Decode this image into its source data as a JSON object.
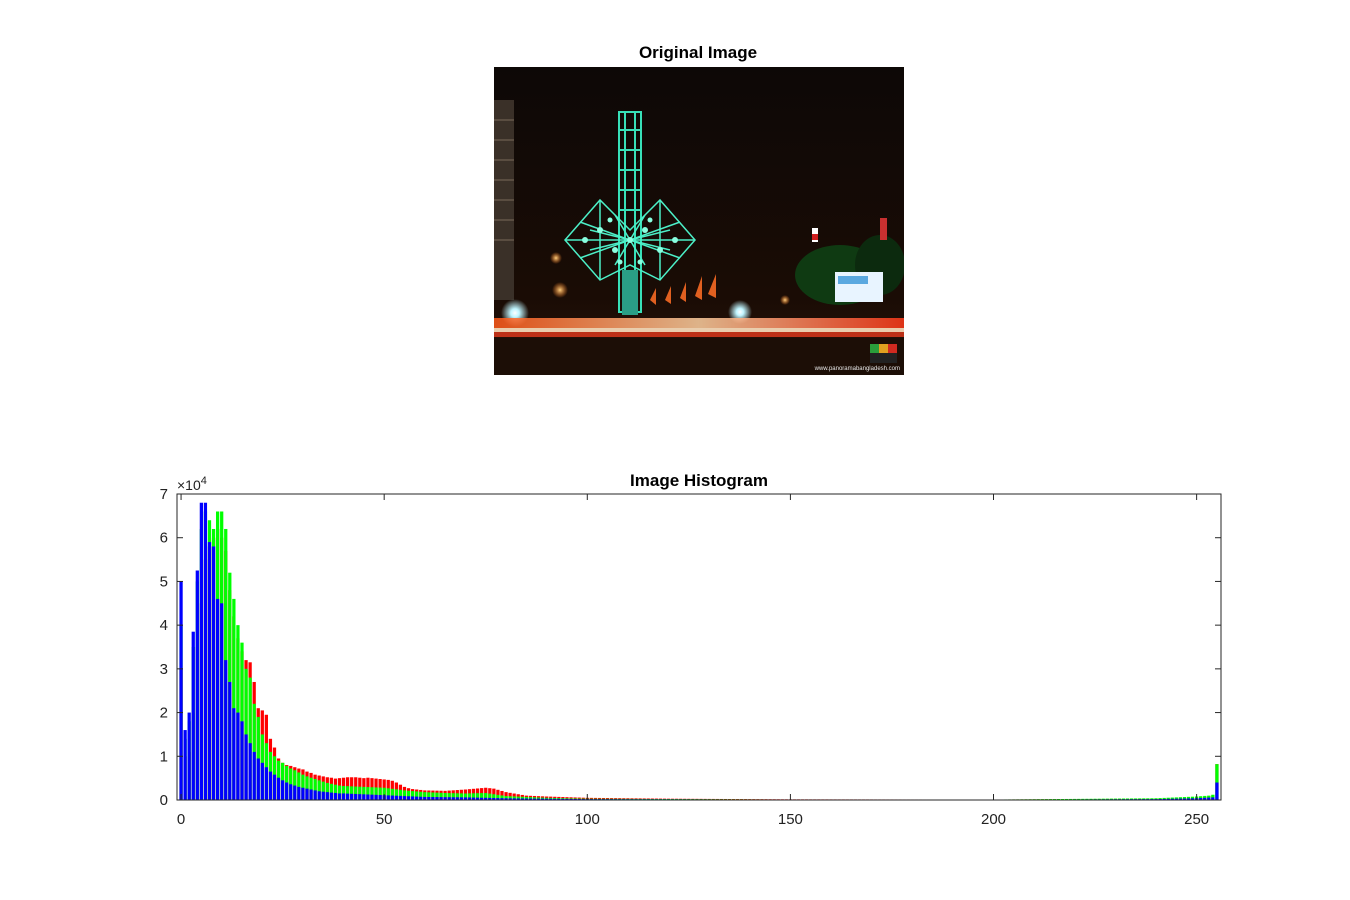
{
  "image_panel": {
    "title": "Original Image",
    "photo": {
      "watermark_url": "www.panoramabangladesh.com",
      "background_color": "#0a0604",
      "structure_color": "#38e0b8",
      "light_colors": [
        "#ff3a1a",
        "#ffb03a",
        "#ffffff"
      ]
    }
  },
  "chart_data": {
    "type": "bar",
    "title": "Image Histogram",
    "xlabel": "",
    "ylabel": "",
    "xlim": [
      -1,
      256
    ],
    "ylim": [
      0,
      70000
    ],
    "x_ticks": [
      0,
      50,
      100,
      150,
      200,
      250
    ],
    "y_ticks": [
      0,
      1,
      2,
      3,
      4,
      5,
      6,
      7
    ],
    "y_exponent_label": "×10",
    "y_exponent_power": "4",
    "y_scale": 10000,
    "grid": false,
    "bar_overlay": "red drawn first, green over red, blue over green",
    "series_colors": {
      "red": "#ff0000",
      "green": "#00ff00",
      "blue": "#0000ff"
    },
    "series": [
      {
        "channel": "red",
        "color": "#ff0000",
        "points": [
          [
            0,
            30000
          ],
          [
            1,
            10000
          ],
          [
            2,
            11000
          ],
          [
            3,
            20000
          ],
          [
            4,
            35000
          ],
          [
            5,
            45000
          ],
          [
            6,
            55000
          ],
          [
            7,
            58000
          ],
          [
            8,
            60000
          ],
          [
            9,
            62000
          ],
          [
            10,
            60000
          ],
          [
            11,
            57000
          ],
          [
            12,
            48000
          ],
          [
            13,
            42000
          ],
          [
            14,
            37000
          ],
          [
            15,
            34000
          ],
          [
            16,
            32000
          ],
          [
            17,
            31500
          ],
          [
            18,
            27000
          ],
          [
            19,
            21000
          ],
          [
            20,
            20500
          ],
          [
            21,
            19500
          ],
          [
            22,
            14000
          ],
          [
            23,
            12000
          ],
          [
            24,
            9500
          ],
          [
            25,
            8500
          ],
          [
            26,
            8000
          ],
          [
            27,
            7800
          ],
          [
            28,
            7500
          ],
          [
            29,
            7200
          ],
          [
            30,
            7000
          ],
          [
            31,
            6500
          ],
          [
            32,
            6200
          ],
          [
            33,
            5800
          ],
          [
            34,
            5600
          ],
          [
            35,
            5400
          ],
          [
            36,
            5200
          ],
          [
            37,
            5100
          ],
          [
            38,
            4900
          ],
          [
            39,
            5000
          ],
          [
            40,
            5100
          ],
          [
            41,
            5200
          ],
          [
            42,
            5200
          ],
          [
            43,
            5200
          ],
          [
            44,
            5100
          ],
          [
            45,
            5000
          ],
          [
            46,
            5100
          ],
          [
            47,
            5000
          ],
          [
            48,
            4900
          ],
          [
            49,
            4800
          ],
          [
            50,
            4700
          ],
          [
            51,
            4600
          ],
          [
            52,
            4400
          ],
          [
            53,
            4000
          ],
          [
            54,
            3500
          ],
          [
            55,
            3000
          ],
          [
            56,
            2700
          ],
          [
            57,
            2500
          ],
          [
            58,
            2400
          ],
          [
            59,
            2300
          ],
          [
            60,
            2200
          ],
          [
            65,
            2100
          ],
          [
            70,
            2400
          ],
          [
            75,
            2800
          ],
          [
            77,
            2600
          ],
          [
            80,
            1800
          ],
          [
            85,
            1000
          ],
          [
            90,
            800
          ],
          [
            100,
            500
          ],
          [
            120,
            300
          ],
          [
            150,
            150
          ],
          [
            200,
            100
          ],
          [
            240,
            300
          ],
          [
            250,
            500
          ],
          [
            253,
            800
          ],
          [
            254,
            1000
          ],
          [
            255,
            8200
          ]
        ]
      },
      {
        "channel": "green",
        "color": "#00ff00",
        "points": [
          [
            0,
            40000
          ],
          [
            1,
            14000
          ],
          [
            2,
            18000
          ],
          [
            3,
            35000
          ],
          [
            4,
            50000
          ],
          [
            5,
            62000
          ],
          [
            6,
            66000
          ],
          [
            7,
            64000
          ],
          [
            8,
            62000
          ],
          [
            9,
            66000
          ],
          [
            10,
            66000
          ],
          [
            11,
            62000
          ],
          [
            12,
            52000
          ],
          [
            13,
            46000
          ],
          [
            14,
            40000
          ],
          [
            15,
            36000
          ],
          [
            16,
            30000
          ],
          [
            17,
            28000
          ],
          [
            18,
            22000
          ],
          [
            19,
            19000
          ],
          [
            20,
            15000
          ],
          [
            21,
            13000
          ],
          [
            22,
            11000
          ],
          [
            23,
            10000
          ],
          [
            24,
            9000
          ],
          [
            25,
            8500
          ],
          [
            26,
            7800
          ],
          [
            27,
            7200
          ],
          [
            28,
            6800
          ],
          [
            29,
            6300
          ],
          [
            30,
            5800
          ],
          [
            31,
            5400
          ],
          [
            32,
            5100
          ],
          [
            33,
            4800
          ],
          [
            34,
            4500
          ],
          [
            35,
            4200
          ],
          [
            36,
            3900
          ],
          [
            37,
            3700
          ],
          [
            38,
            3500
          ],
          [
            39,
            3300
          ],
          [
            40,
            3200
          ],
          [
            45,
            3000
          ],
          [
            50,
            2800
          ],
          [
            55,
            2200
          ],
          [
            60,
            1800
          ],
          [
            65,
            1600
          ],
          [
            70,
            1500
          ],
          [
            75,
            1600
          ],
          [
            80,
            900
          ],
          [
            90,
            500
          ],
          [
            100,
            300
          ],
          [
            150,
            100
          ],
          [
            200,
            100
          ],
          [
            240,
            400
          ],
          [
            250,
            800
          ],
          [
            253,
            1000
          ],
          [
            254,
            1200
          ],
          [
            255,
            8200
          ]
        ]
      },
      {
        "channel": "blue",
        "color": "#0000ff",
        "points": [
          [
            0,
            50000
          ],
          [
            1,
            16000
          ],
          [
            2,
            20000
          ],
          [
            3,
            38500
          ],
          [
            4,
            52500
          ],
          [
            5,
            68000
          ],
          [
            6,
            68000
          ],
          [
            7,
            59000
          ],
          [
            8,
            58000
          ],
          [
            9,
            46000
          ],
          [
            10,
            45000
          ],
          [
            11,
            32000
          ],
          [
            12,
            27000
          ],
          [
            13,
            21000
          ],
          [
            14,
            20000
          ],
          [
            15,
            18000
          ],
          [
            16,
            15000
          ],
          [
            17,
            13000
          ],
          [
            18,
            11000
          ],
          [
            19,
            9500
          ],
          [
            20,
            8500
          ],
          [
            21,
            7500
          ],
          [
            22,
            6500
          ],
          [
            23,
            5800
          ],
          [
            24,
            5100
          ],
          [
            25,
            4500
          ],
          [
            26,
            4000
          ],
          [
            27,
            3600
          ],
          [
            28,
            3300
          ],
          [
            29,
            3000
          ],
          [
            30,
            2800
          ],
          [
            31,
            2600
          ],
          [
            32,
            2400
          ],
          [
            33,
            2200
          ],
          [
            34,
            2000
          ],
          [
            35,
            1900
          ],
          [
            36,
            1800
          ],
          [
            37,
            1700
          ],
          [
            38,
            1600
          ],
          [
            39,
            1500
          ],
          [
            40,
            1500
          ],
          [
            45,
            1300
          ],
          [
            50,
            1100
          ],
          [
            55,
            900
          ],
          [
            60,
            700
          ],
          [
            70,
            600
          ],
          [
            80,
            400
          ],
          [
            100,
            200
          ],
          [
            150,
            80
          ],
          [
            200,
            50
          ],
          [
            240,
            200
          ],
          [
            250,
            400
          ],
          [
            254,
            600
          ],
          [
            255,
            4000
          ]
        ]
      }
    ]
  }
}
